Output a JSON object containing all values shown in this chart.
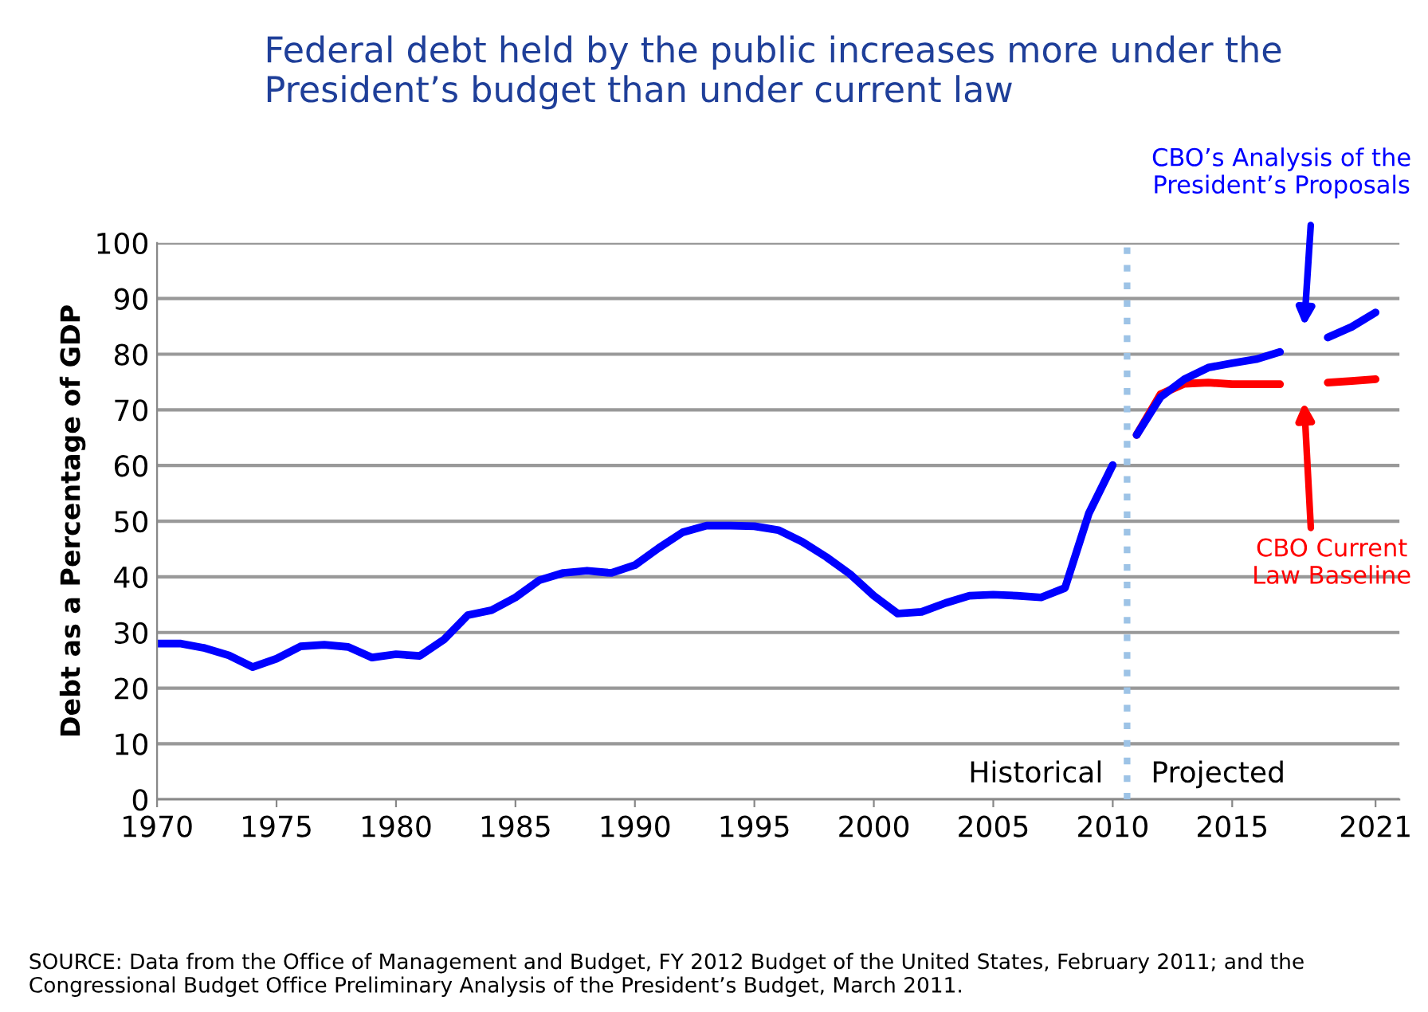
{
  "chart_data": {
    "type": "line",
    "title": "Federal debt held by the public increases more under the President’s budget than under current law",
    "ylabel": "Debt as a Percentage of GDP",
    "series": [
      {
        "color": "#0000ff",
        "x": [
          1970,
          1971,
          1972,
          1973,
          1974,
          1975,
          1976,
          1977,
          1978,
          1979,
          1980,
          1981,
          1982,
          1983,
          1984,
          1985,
          1986,
          1987,
          1988,
          1989,
          1990,
          1991,
          1992,
          1993,
          1994,
          1995,
          1996,
          1997,
          1998,
          1999,
          2000,
          2001,
          2002,
          2003,
          2004,
          2005,
          2006,
          2007,
          2008,
          2009,
          2010
        ],
        "values": [
          28.0,
          28.0,
          27.2,
          25.9,
          23.8,
          25.3,
          27.5,
          27.8,
          27.4,
          25.5,
          26.1,
          25.8,
          28.7,
          33.1,
          34.0,
          36.3,
          39.4,
          40.7,
          41.1,
          40.7,
          42.1,
          45.2,
          48.0,
          49.2,
          49.2,
          49.1,
          48.4,
          46.3,
          43.6,
          40.5,
          36.6,
          33.4,
          33.7,
          35.3,
          36.6,
          36.8,
          36.6,
          36.3,
          38.0,
          51.4,
          60.1
        ]
      },
      {
        "color": "#ff0000",
        "x": [
          2011,
          2012,
          2013,
          2014,
          2015,
          2016,
          2017,
          2018,
          2019,
          2020,
          2021
        ],
        "values": [
          65.5,
          72.8,
          74.7,
          74.9,
          74.6,
          74.6,
          74.6,
          null,
          74.9,
          75.2,
          75.5
        ]
      },
      {
        "color": "#0000ff",
        "x": [
          2011,
          2012,
          2013,
          2014,
          2015,
          2016,
          2017,
          2018,
          2019,
          2020,
          2021
        ],
        "values": [
          65.5,
          72.3,
          75.5,
          77.6,
          78.4,
          79.1,
          80.4,
          null,
          83.0,
          84.9,
          87.5
        ]
      }
    ],
    "xlim": [
      1970,
      2022
    ],
    "xticks": [
      1970,
      1975,
      1980,
      1985,
      1990,
      1995,
      2000,
      2005,
      2010,
      2015,
      2021
    ],
    "ylim": [
      0,
      100
    ],
    "yticks": [
      0,
      10,
      20,
      30,
      40,
      50,
      60,
      70,
      80,
      90,
      100
    ],
    "grid": "y",
    "ref_lines": [
      {
        "axis": "x",
        "value": 2010.6,
        "color": "#9dc3e6",
        "line_style": "dotted"
      }
    ],
    "annotations": [
      "Historical",
      "Projected",
      "CBO’s Analysis of the\nPresident’s Proposals",
      "CBO Current\nLaw Baseline",
      "SOURCE: Data from the Office of Management and Budget, FY 2012 Budget of the United States, February 2011; and the Congressional Budget Office Preliminary Analysis of the President’s Budget, March 2011."
    ]
  }
}
